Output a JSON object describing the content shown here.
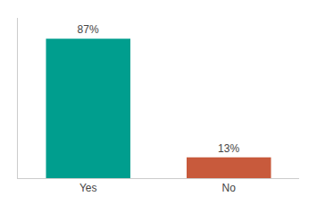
{
  "chart_data": {
    "type": "bar",
    "categories": [
      "Yes",
      "No"
    ],
    "values": [
      87,
      13
    ],
    "value_labels": [
      "87%",
      "13%"
    ],
    "data_labels": true,
    "colors": [
      "#009E8E",
      "#C85A3C"
    ],
    "ylim": [
      0,
      100
    ],
    "grid": false,
    "tick_labels": "x"
  }
}
